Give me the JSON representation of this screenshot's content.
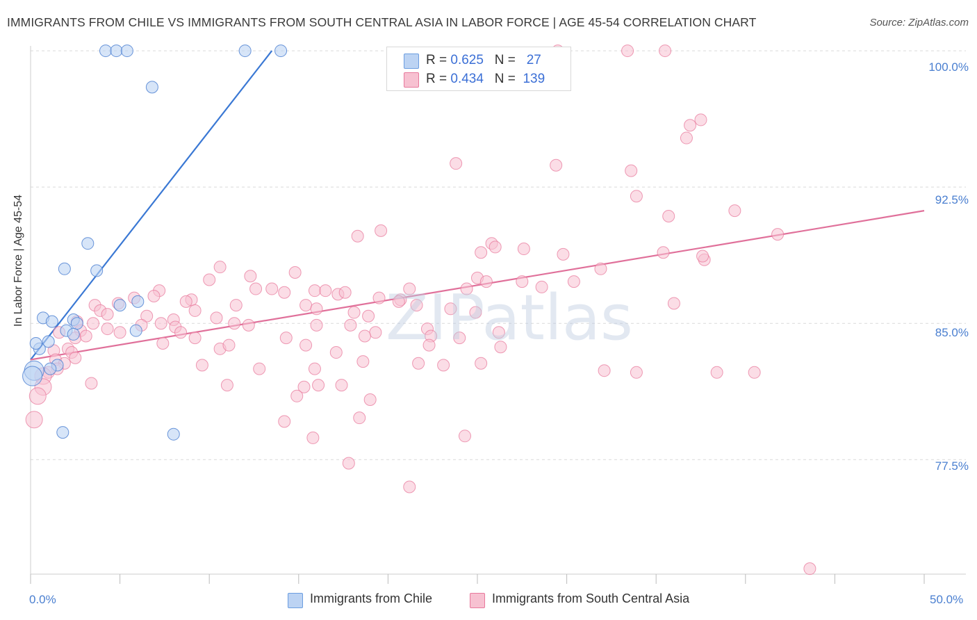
{
  "title": "IMMIGRANTS FROM CHILE VS IMMIGRANTS FROM SOUTH CENTRAL ASIA IN LABOR FORCE | AGE 45-54 CORRELATION CHART",
  "source": "Source: ZipAtlas.com",
  "watermark": "ZIPatlas",
  "legend_top": {
    "r_label": "R =",
    "n_label": "N =",
    "chile": {
      "r": "0.625",
      "n": "27"
    },
    "sca": {
      "r": "0.434",
      "n": "139"
    }
  },
  "chart_data": {
    "type": "scatter",
    "xlabel": "",
    "ylabel": "In Labor Force | Age 45-54",
    "xlim": [
      0,
      50
    ],
    "ylim": [
      71.2,
      100.5
    ],
    "x_tick_labels": [
      "0.0%",
      "50.0%"
    ],
    "y_ticks": [
      77.5,
      85.0,
      92.5,
      100.0
    ],
    "y_tick_labels": [
      "77.5%",
      "85.0%",
      "92.5%",
      "100.0%"
    ],
    "grid": true,
    "legend_position": "top-center",
    "colors": {
      "chile": "#6b9de0",
      "chile_fill": "#bcd3f3",
      "sca": "#e8799c",
      "sca_fill": "#f7c1d1"
    },
    "series": [
      {
        "name": "Immigrants from Chile",
        "color": "#6b9de0",
        "trend": {
          "x0": 0.0,
          "y0": 83.0,
          "x1": 13.5,
          "y1": 100.0
        },
        "points": [
          [
            4.2,
            100
          ],
          [
            4.8,
            100
          ],
          [
            5.4,
            100
          ],
          [
            12.0,
            100
          ],
          [
            14.0,
            100
          ],
          [
            6.8,
            98.0
          ],
          [
            3.2,
            89.4
          ],
          [
            1.9,
            88.0
          ],
          [
            3.7,
            87.9
          ],
          [
            0.7,
            85.3
          ],
          [
            2.4,
            85.2
          ],
          [
            2.6,
            85.0
          ],
          [
            1.2,
            85.1
          ],
          [
            2.0,
            84.6
          ],
          [
            2.4,
            84.4
          ],
          [
            5.9,
            84.6
          ],
          [
            1.0,
            84.0
          ],
          [
            0.5,
            83.6
          ],
          [
            0.3,
            83.9
          ],
          [
            1.5,
            82.7
          ],
          [
            0.2,
            82.4
          ],
          [
            0.1,
            82.1
          ],
          [
            6.0,
            86.2
          ],
          [
            5.0,
            86.0
          ],
          [
            1.1,
            82.5
          ],
          [
            1.8,
            79.0
          ],
          [
            8.0,
            78.9
          ]
        ]
      },
      {
        "name": "Immigrants from South Central Asia",
        "color": "#e8799c",
        "trend": {
          "x0": 0.0,
          "y0": 83.0,
          "x1": 50.0,
          "y1": 91.2
        },
        "points": [
          [
            29.5,
            100
          ],
          [
            33.4,
            100
          ],
          [
            35.5,
            100
          ],
          [
            37.5,
            96.2
          ],
          [
            36.9,
            95.9
          ],
          [
            36.7,
            95.2
          ],
          [
            23.8,
            93.8
          ],
          [
            29.4,
            93.7
          ],
          [
            33.6,
            93.4
          ],
          [
            33.9,
            92.0
          ],
          [
            39.4,
            91.2
          ],
          [
            35.7,
            90.9
          ],
          [
            19.6,
            90.1
          ],
          [
            18.3,
            89.8
          ],
          [
            41.8,
            89.9
          ],
          [
            25.8,
            89.4
          ],
          [
            26.0,
            89.2
          ],
          [
            27.6,
            89.1
          ],
          [
            25.2,
            88.9
          ],
          [
            29.8,
            88.8
          ],
          [
            35.4,
            88.9
          ],
          [
            37.7,
            88.5
          ],
          [
            37.6,
            88.7
          ],
          [
            10.6,
            88.1
          ],
          [
            14.8,
            87.8
          ],
          [
            12.3,
            87.6
          ],
          [
            10.0,
            87.4
          ],
          [
            31.9,
            88.0
          ],
          [
            25.0,
            87.5
          ],
          [
            25.5,
            87.3
          ],
          [
            27.5,
            87.3
          ],
          [
            30.4,
            87.3
          ],
          [
            28.6,
            87.0
          ],
          [
            21.2,
            86.9
          ],
          [
            24.4,
            86.9
          ],
          [
            13.5,
            86.9
          ],
          [
            12.6,
            86.9
          ],
          [
            14.2,
            86.7
          ],
          [
            7.2,
            86.8
          ],
          [
            15.9,
            86.8
          ],
          [
            17.2,
            86.6
          ],
          [
            17.6,
            86.7
          ],
          [
            16.5,
            86.8
          ],
          [
            5.8,
            86.4
          ],
          [
            6.9,
            86.5
          ],
          [
            19.5,
            86.4
          ],
          [
            20.7,
            86.3
          ],
          [
            20.6,
            86.2
          ],
          [
            11.5,
            86.0
          ],
          [
            9.0,
            86.3
          ],
          [
            8.7,
            86.2
          ],
          [
            4.9,
            86.1
          ],
          [
            3.6,
            86.0
          ],
          [
            3.9,
            85.7
          ],
          [
            4.3,
            85.5
          ],
          [
            15.4,
            86.0
          ],
          [
            16.0,
            85.8
          ],
          [
            21.6,
            86.0
          ],
          [
            23.5,
            85.8
          ],
          [
            36.0,
            86.1
          ],
          [
            9.2,
            85.7
          ],
          [
            10.4,
            85.3
          ],
          [
            8.0,
            85.2
          ],
          [
            6.5,
            85.4
          ],
          [
            6.2,
            84.9
          ],
          [
            18.1,
            85.6
          ],
          [
            18.9,
            85.4
          ],
          [
            24.9,
            85.6
          ],
          [
            2.6,
            85.1
          ],
          [
            3.5,
            85.0
          ],
          [
            2.8,
            84.6
          ],
          [
            4.3,
            84.7
          ],
          [
            5.0,
            84.5
          ],
          [
            7.3,
            85.0
          ],
          [
            8.1,
            84.8
          ],
          [
            8.4,
            84.5
          ],
          [
            11.4,
            85.0
          ],
          [
            12.2,
            84.9
          ],
          [
            16.0,
            84.9
          ],
          [
            17.9,
            84.9
          ],
          [
            19.3,
            84.5
          ],
          [
            22.2,
            84.7
          ],
          [
            1.6,
            84.5
          ],
          [
            2.5,
            84.2
          ],
          [
            3.1,
            84.3
          ],
          [
            9.2,
            84.2
          ],
          [
            14.3,
            84.2
          ],
          [
            18.7,
            84.3
          ],
          [
            22.4,
            84.3
          ],
          [
            22.3,
            83.8
          ],
          [
            24.0,
            84.2
          ],
          [
            26.2,
            84.5
          ],
          [
            7.4,
            83.9
          ],
          [
            2.1,
            83.6
          ],
          [
            2.3,
            83.4
          ],
          [
            10.6,
            83.6
          ],
          [
            11.1,
            83.8
          ],
          [
            15.4,
            83.8
          ],
          [
            1.3,
            83.5
          ],
          [
            17.1,
            83.4
          ],
          [
            1.4,
            83.0
          ],
          [
            2.5,
            83.1
          ],
          [
            26.3,
            83.7
          ],
          [
            1.9,
            82.8
          ],
          [
            9.6,
            82.7
          ],
          [
            23.1,
            82.7
          ],
          [
            18.6,
            82.9
          ],
          [
            21.7,
            82.8
          ],
          [
            25.2,
            82.8
          ],
          [
            32.1,
            82.4
          ],
          [
            12.8,
            82.5
          ],
          [
            15.9,
            82.5
          ],
          [
            1.5,
            82.5
          ],
          [
            1.0,
            82.3
          ],
          [
            0.7,
            82.1
          ],
          [
            33.9,
            82.3
          ],
          [
            40.5,
            82.3
          ],
          [
            38.4,
            82.3
          ],
          [
            3.4,
            81.7
          ],
          [
            11.0,
            81.6
          ],
          [
            15.3,
            81.5
          ],
          [
            16.1,
            81.6
          ],
          [
            0.7,
            81.5
          ],
          [
            0.4,
            81.0
          ],
          [
            14.9,
            81.0
          ],
          [
            19.0,
            80.8
          ],
          [
            17.4,
            81.6
          ],
          [
            14.2,
            79.6
          ],
          [
            18.4,
            79.8
          ],
          [
            24.3,
            78.8
          ],
          [
            15.8,
            78.7
          ],
          [
            17.8,
            77.3
          ],
          [
            21.2,
            76.0
          ],
          [
            0.2,
            79.7
          ],
          [
            43.6,
            71.5
          ]
        ]
      }
    ]
  },
  "bottom_legend": {
    "chile": "Immigrants from Chile",
    "sca": "Immigrants from South Central Asia"
  }
}
